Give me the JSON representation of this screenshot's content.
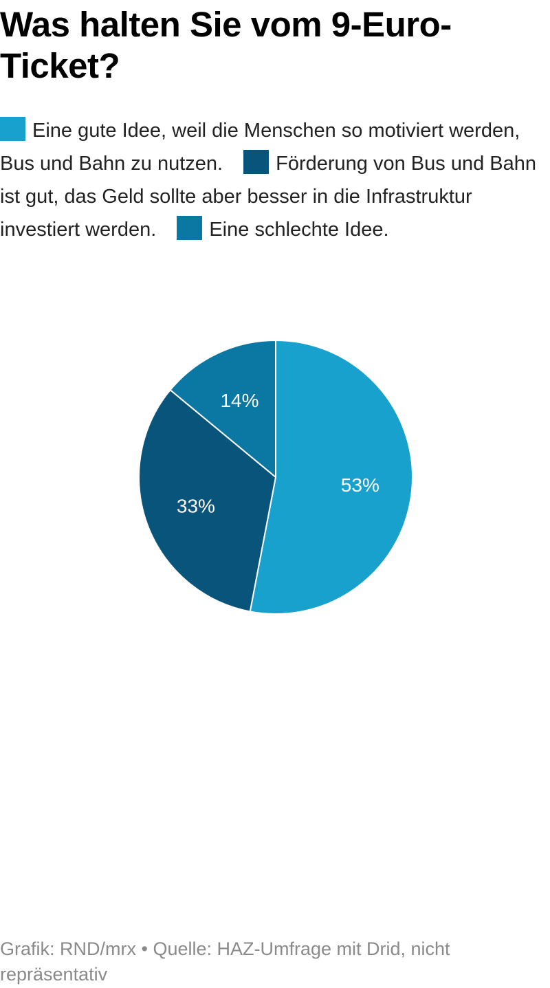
{
  "chart_data": {
    "type": "pie",
    "title": "Was halten Sie vom 9-Euro-Ticket?",
    "series": [
      {
        "name": "Eine gute Idee, weil die Menschen so motiviert werden, Bus und Bahn zu nutzen.",
        "value": 53,
        "label": "53%",
        "color": "#18a1cd"
      },
      {
        "name": "Förderung von Bus und Bahn ist gut, das Geld sollte aber besser in die Infrastruktur investiert werden.",
        "value": 33,
        "label": "33%",
        "color": "#09547a"
      },
      {
        "name": "Eine schlechte Idee.",
        "value": 14,
        "label": "14%",
        "color": "#0b77a3"
      }
    ],
    "legend_position": "top"
  },
  "footer": {
    "text": "Grafik: RND/mrx • Quelle: HAZ-Umfrage mit Drid, nicht repräsentativ"
  }
}
